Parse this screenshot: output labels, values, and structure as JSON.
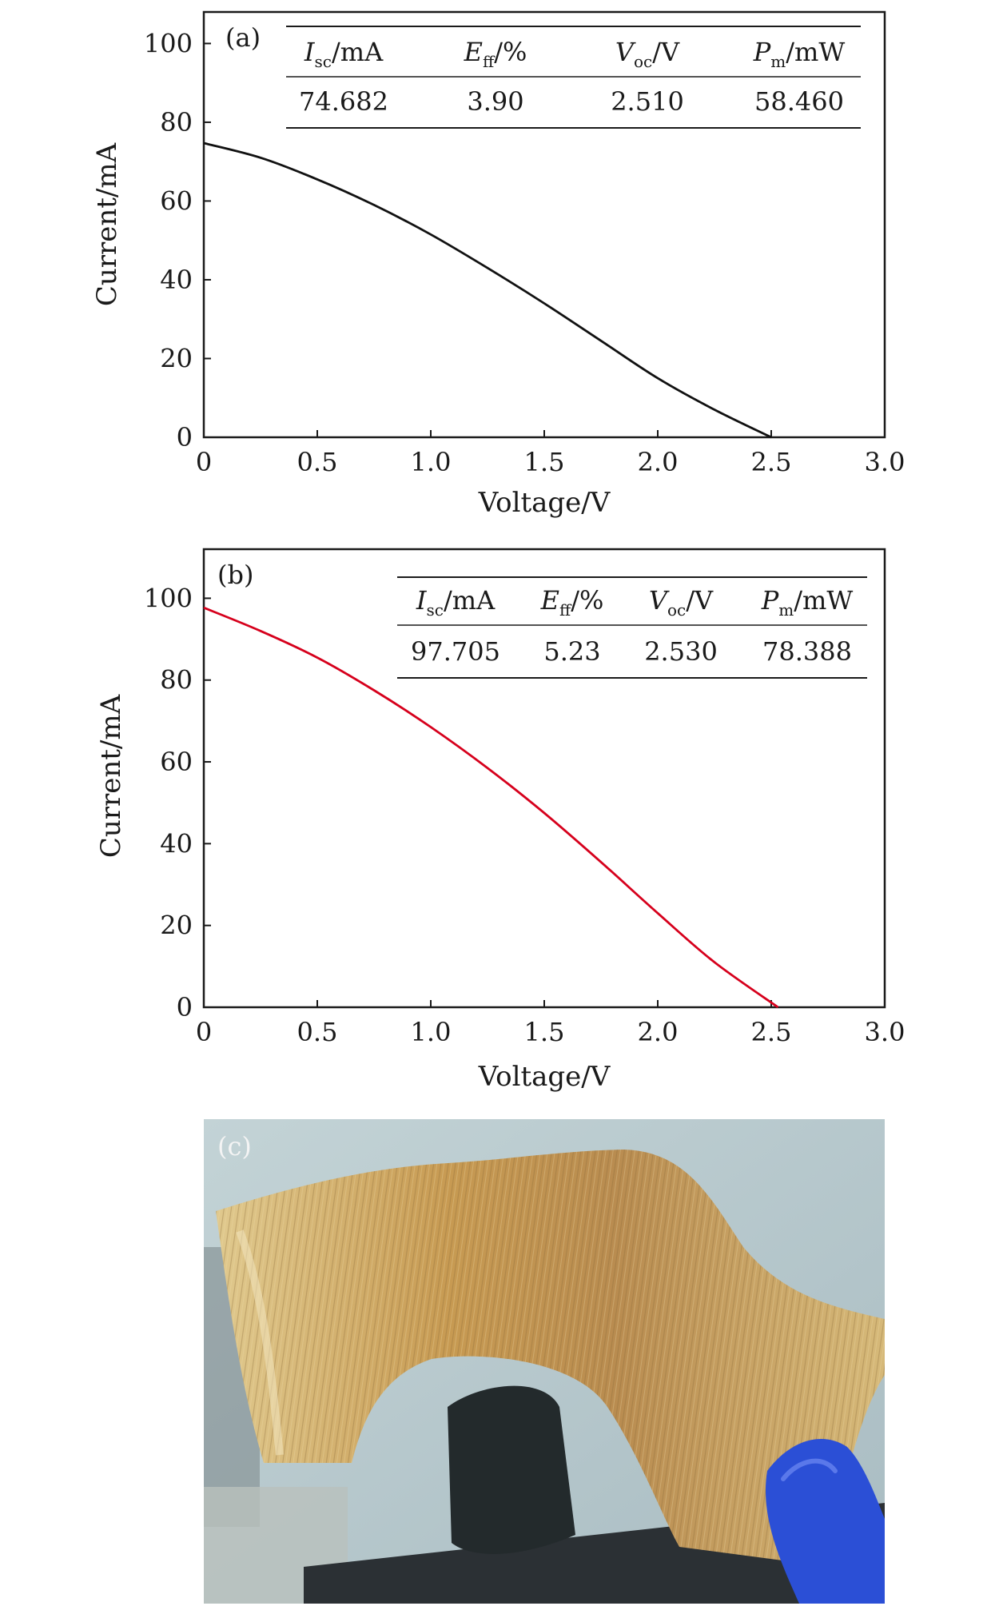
{
  "chart_data": [
    {
      "type": "line",
      "panel_label": "(a)",
      "xlabel": "Voltage/V",
      "ylabel": "Current/mA",
      "xlim": [
        0,
        3.0
      ],
      "ylim": [
        0,
        108
      ],
      "x_ticks": [
        0,
        0.5,
        1.0,
        1.5,
        2.0,
        2.5,
        3.0
      ],
      "x_tick_labels": [
        "0",
        "0.5",
        "1.0",
        "1.5",
        "2.0",
        "2.5",
        "3.0"
      ],
      "y_ticks": [
        0,
        20,
        40,
        60,
        80,
        100
      ],
      "y_tick_labels": [
        "0",
        "20",
        "40",
        "60",
        "80",
        "100"
      ],
      "series": [
        {
          "color": "#111111",
          "x": [
            0,
            0.25,
            0.5,
            0.75,
            1.0,
            1.25,
            1.5,
            1.75,
            2.0,
            2.25,
            2.5
          ],
          "y": [
            74.7,
            71.0,
            65.5,
            59.0,
            51.5,
            43.0,
            34.0,
            24.5,
            15.0,
            7.0,
            0
          ]
        }
      ],
      "table": {
        "headers": [
          {
            "main": "I",
            "sub": "sc",
            "unit": "/mA"
          },
          {
            "main": "E",
            "sub": "ff",
            "unit": "/%"
          },
          {
            "main": "V",
            "sub": "oc",
            "unit": "/V"
          },
          {
            "main": "P",
            "sub": "m",
            "unit": "/mW"
          }
        ],
        "values": [
          "74.682",
          "3.90",
          "2.510",
          "58.460"
        ]
      }
    },
    {
      "type": "line",
      "panel_label": "(b)",
      "xlabel": "Voltage/V",
      "ylabel": "Current/mA",
      "xlim": [
        0,
        3.0
      ],
      "ylim": [
        0,
        112
      ],
      "x_ticks": [
        0,
        0.5,
        1.0,
        1.5,
        2.0,
        2.5,
        3.0
      ],
      "x_tick_labels": [
        "0",
        "0.5",
        "1.0",
        "1.5",
        "2.0",
        "2.5",
        "3.0"
      ],
      "y_ticks": [
        0,
        20,
        40,
        60,
        80,
        100
      ],
      "y_tick_labels": [
        "0",
        "20",
        "40",
        "60",
        "80",
        "100"
      ],
      "series": [
        {
          "color": "#d6001c",
          "x": [
            0,
            0.25,
            0.5,
            0.75,
            1.0,
            1.25,
            1.5,
            1.75,
            2.0,
            2.25,
            2.53
          ],
          "y": [
            97.7,
            92.0,
            85.5,
            77.5,
            68.5,
            58.5,
            47.5,
            35.5,
            23.0,
            11.0,
            0
          ]
        }
      ],
      "table": {
        "headers": [
          {
            "main": "I",
            "sub": "sc",
            "unit": "/mA"
          },
          {
            "main": "E",
            "sub": "ff",
            "unit": "/%"
          },
          {
            "main": "V",
            "sub": "oc",
            "unit": "/V"
          },
          {
            "main": "P",
            "sub": "m",
            "unit": "/mW"
          }
        ],
        "values": [
          "97.705",
          "5.23",
          "2.530",
          "78.388"
        ]
      }
    }
  ],
  "photo": {
    "panel_label": "(c)",
    "colors": {
      "sky": "#b9cbd0",
      "film": "#caa766",
      "glove": "#2a4fd8",
      "dark": "#2a2f33"
    }
  }
}
